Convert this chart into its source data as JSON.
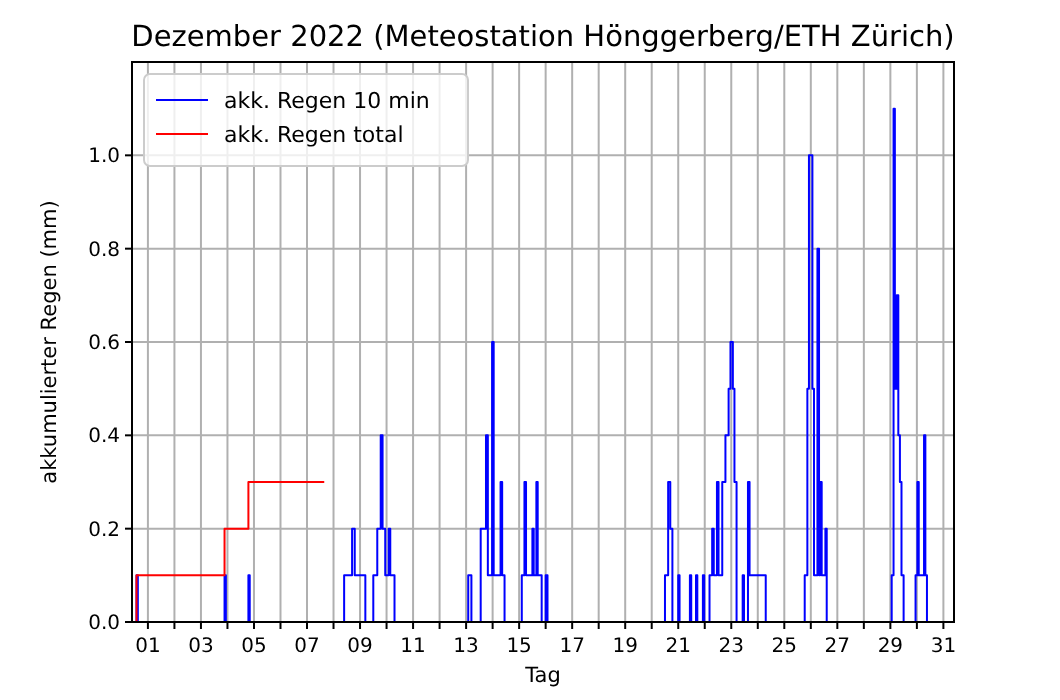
{
  "chart_data": {
    "type": "step",
    "title": "Dezember 2022  (Meteostation Hönggerberg/ETH Zürich)",
    "xlabel": "Tag",
    "ylabel": "akkumulierter Regen (mm)",
    "xlim": [
      0.4,
      31.4
    ],
    "ylim": [
      0,
      1.2
    ],
    "xticks": [
      {
        "value": 1,
        "label": "01"
      },
      {
        "value": 2,
        "label": null
      },
      {
        "value": 3,
        "label": "03"
      },
      {
        "value": 4,
        "label": null
      },
      {
        "value": 5,
        "label": "05"
      },
      {
        "value": 6,
        "label": null
      },
      {
        "value": 7,
        "label": "07"
      },
      {
        "value": 8,
        "label": null
      },
      {
        "value": 9,
        "label": "09"
      },
      {
        "value": 10,
        "label": null
      },
      {
        "value": 11,
        "label": "11"
      },
      {
        "value": 12,
        "label": null
      },
      {
        "value": 13,
        "label": "13"
      },
      {
        "value": 14,
        "label": null
      },
      {
        "value": 15,
        "label": "15"
      },
      {
        "value": 16,
        "label": null
      },
      {
        "value": 17,
        "label": "17"
      },
      {
        "value": 18,
        "label": null
      },
      {
        "value": 19,
        "label": "19"
      },
      {
        "value": 20,
        "label": null
      },
      {
        "value": 21,
        "label": "21"
      },
      {
        "value": 22,
        "label": null
      },
      {
        "value": 23,
        "label": "23"
      },
      {
        "value": 24,
        "label": null
      },
      {
        "value": 25,
        "label": "25"
      },
      {
        "value": 26,
        "label": null
      },
      {
        "value": 27,
        "label": "27"
      },
      {
        "value": 28,
        "label": null
      },
      {
        "value": 29,
        "label": "29"
      },
      {
        "value": 30,
        "label": null
      },
      {
        "value": 31,
        "label": "31"
      }
    ],
    "yticks": [
      {
        "value": 0,
        "label": "0.0"
      },
      {
        "value": 0.2,
        "label": "0.2"
      },
      {
        "value": 0.4,
        "label": "0.4"
      },
      {
        "value": 0.6,
        "label": "0.6"
      },
      {
        "value": 0.8,
        "label": "0.8"
      },
      {
        "value": 1,
        "label": "1.0"
      }
    ],
    "grid": true,
    "legend": "top left",
    "series": [
      {
        "name": "akk. Regen 10 min",
        "color": "#0000ff",
        "x": [
          0.4,
          0.57,
          0.62,
          3.89,
          3.94,
          4.79,
          4.84,
          8.4,
          8.7,
          8.8,
          9.2,
          9.5,
          9.65,
          9.78,
          9.85,
          9.95,
          10.08,
          10.14,
          10.3,
          13.08,
          13.2,
          13.55,
          13.75,
          13.82,
          13.98,
          14.04,
          14.3,
          14.36,
          14.45,
          15.1,
          15.2,
          15.26,
          15.5,
          15.55,
          15.65,
          15.7,
          15.85,
          16.0,
          16.07,
          20.5,
          20.62,
          20.7,
          20.78,
          21.0,
          21.05,
          21.44,
          21.49,
          21.67,
          21.72,
          21.93,
          21.98,
          22.18,
          22.28,
          22.34,
          22.46,
          22.52,
          22.66,
          22.78,
          22.9,
          22.97,
          23.06,
          23.12,
          23.2,
          23.43,
          23.48,
          23.63,
          23.69,
          24.3,
          25.77,
          25.87,
          25.93,
          26.06,
          26.12,
          26.25,
          26.31,
          26.35,
          26.41,
          26.55,
          26.6,
          29.05,
          29.12,
          29.17,
          29.24,
          29.3,
          29.36,
          29.42,
          29.5,
          29.95,
          30.02,
          30.07,
          30.27,
          30.32,
          30.38
        ],
        "values": [
          0,
          0.1,
          0,
          0.1,
          0,
          0.1,
          0,
          0.1,
          0.2,
          0.1,
          0,
          0.1,
          0.2,
          0.4,
          0.2,
          0.1,
          0.2,
          0.1,
          0,
          0.1,
          0,
          0.2,
          0.4,
          0.1,
          0.6,
          0.1,
          0.3,
          0.1,
          0,
          0.1,
          0.3,
          0.1,
          0.2,
          0.1,
          0.3,
          0.1,
          0,
          0.1,
          0,
          0.1,
          0.3,
          0.2,
          0,
          0.1,
          0,
          0.1,
          0,
          0.1,
          0,
          0.1,
          0,
          0.1,
          0.2,
          0.1,
          0.3,
          0.1,
          0.3,
          0.4,
          0.5,
          0.6,
          0.5,
          0.3,
          0,
          0.1,
          0,
          0.3,
          0.1,
          0,
          0.1,
          0.5,
          1.0,
          0.5,
          0.1,
          0.8,
          0.1,
          0.3,
          0.1,
          0.2,
          0,
          0.1,
          1.1,
          0.5,
          0.7,
          0.4,
          0.3,
          0.1,
          0,
          0.1,
          0.3,
          0.1,
          0.4,
          0.1,
          0
        ]
      },
      {
        "name": "akk. Regen total",
        "color": "#ff0000",
        "x": [
          0.56,
          0.57,
          3.89,
          4.79,
          7.65
        ],
        "values": [
          0,
          0.1,
          0.2,
          0.3,
          0.3
        ]
      }
    ]
  }
}
